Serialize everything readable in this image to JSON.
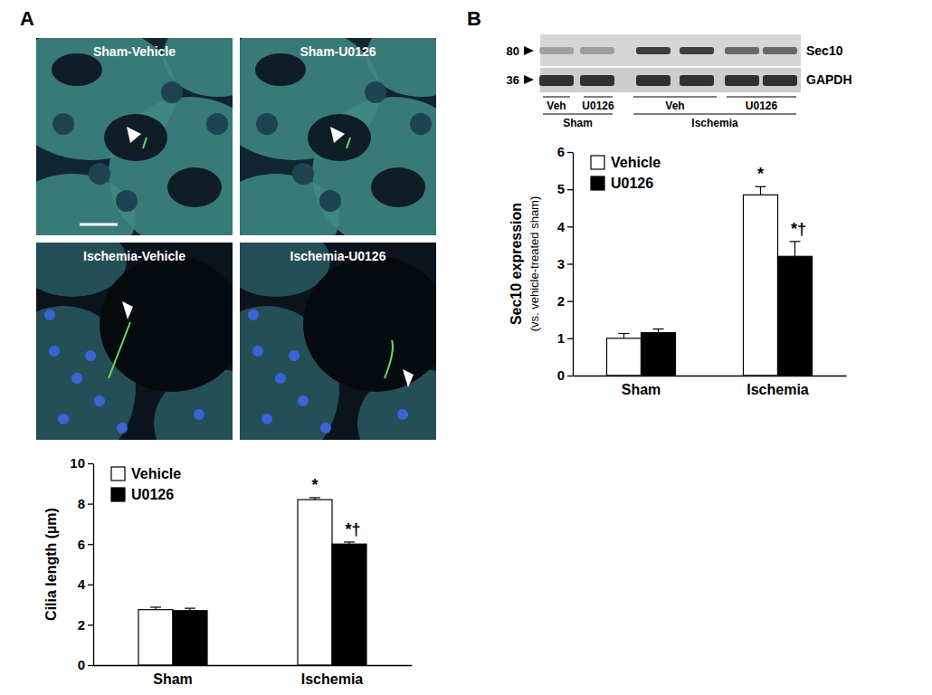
{
  "figure": {
    "panel_labels": [
      "A",
      "B"
    ],
    "micrograph_labels": [
      "Sham-Vehicle",
      "Sham-U0126",
      "Ischemia-Vehicle",
      "Ischemia-U0126"
    ],
    "blot": {
      "kda_markers": [
        80,
        36
      ],
      "bands": [
        "Sec10",
        "GAPDH"
      ],
      "lanes": [
        "Veh",
        "U0126",
        "Veh",
        "U0126"
      ],
      "groups": [
        "Sham",
        "Ischemia"
      ]
    }
  },
  "chart_data": [
    {
      "type": "bar",
      "ylabel": [
        "Cilia length (µm)"
      ],
      "categories": [
        "Sham",
        "Ischemia"
      ],
      "series": [
        {
          "name": "Vehicle",
          "color": "#ffffff",
          "values": [
            2.75,
            8.2
          ],
          "errors": [
            0.12,
            0.1
          ],
          "annotations": [
            null,
            "*"
          ]
        },
        {
          "name": "U0126",
          "color": "#000000",
          "values": [
            2.7,
            6.0
          ],
          "errors": [
            0.12,
            0.1
          ],
          "annotations": [
            null,
            "*†"
          ]
        }
      ],
      "ylim": [
        0,
        10
      ],
      "yticks": [
        0,
        2,
        4,
        6,
        8,
        10
      ],
      "grid": false,
      "legend": "top-left"
    },
    {
      "type": "bar",
      "ylabel": [
        "Sec10 expression",
        "(vs. vehicle-treated sham)"
      ],
      "categories": [
        "Sham",
        "Ischemia"
      ],
      "series": [
        {
          "name": "Vehicle",
          "color": "#ffffff",
          "values": [
            1.0,
            4.85
          ],
          "errors": [
            0.13,
            0.22
          ],
          "annotations": [
            null,
            "*"
          ]
        },
        {
          "name": "U0126",
          "color": "#000000",
          "values": [
            1.15,
            3.2
          ],
          "errors": [
            0.1,
            0.4
          ],
          "annotations": [
            null,
            "*†"
          ]
        }
      ],
      "ylim": [
        0,
        6
      ],
      "yticks": [
        0,
        1,
        2,
        3,
        4,
        5,
        6
      ],
      "grid": false,
      "legend": "top-left"
    }
  ]
}
